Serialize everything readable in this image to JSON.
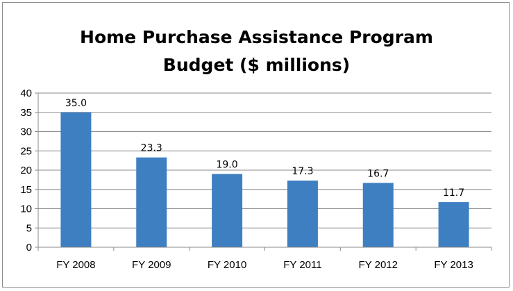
{
  "chart_data": {
    "type": "bar",
    "title_lines": [
      "Home Purchase Assistance Program",
      "Budget ($ millions)"
    ],
    "categories": [
      "FY 2008",
      "FY 2009",
      "FY 2010",
      "FY 2011",
      "FY 2012",
      "FY 2013"
    ],
    "values": [
      35.0,
      23.3,
      19.0,
      17.3,
      16.7,
      11.7
    ],
    "data_labels": [
      "35.0",
      "23.3",
      "19.0",
      "17.3",
      "16.7",
      "11.7"
    ],
    "y_ticks": [
      0,
      5,
      10,
      15,
      20,
      25,
      30,
      35,
      40
    ],
    "ylim": [
      0,
      40
    ],
    "grid": true,
    "legend": "none",
    "bar_color": "#3e7fc1"
  }
}
